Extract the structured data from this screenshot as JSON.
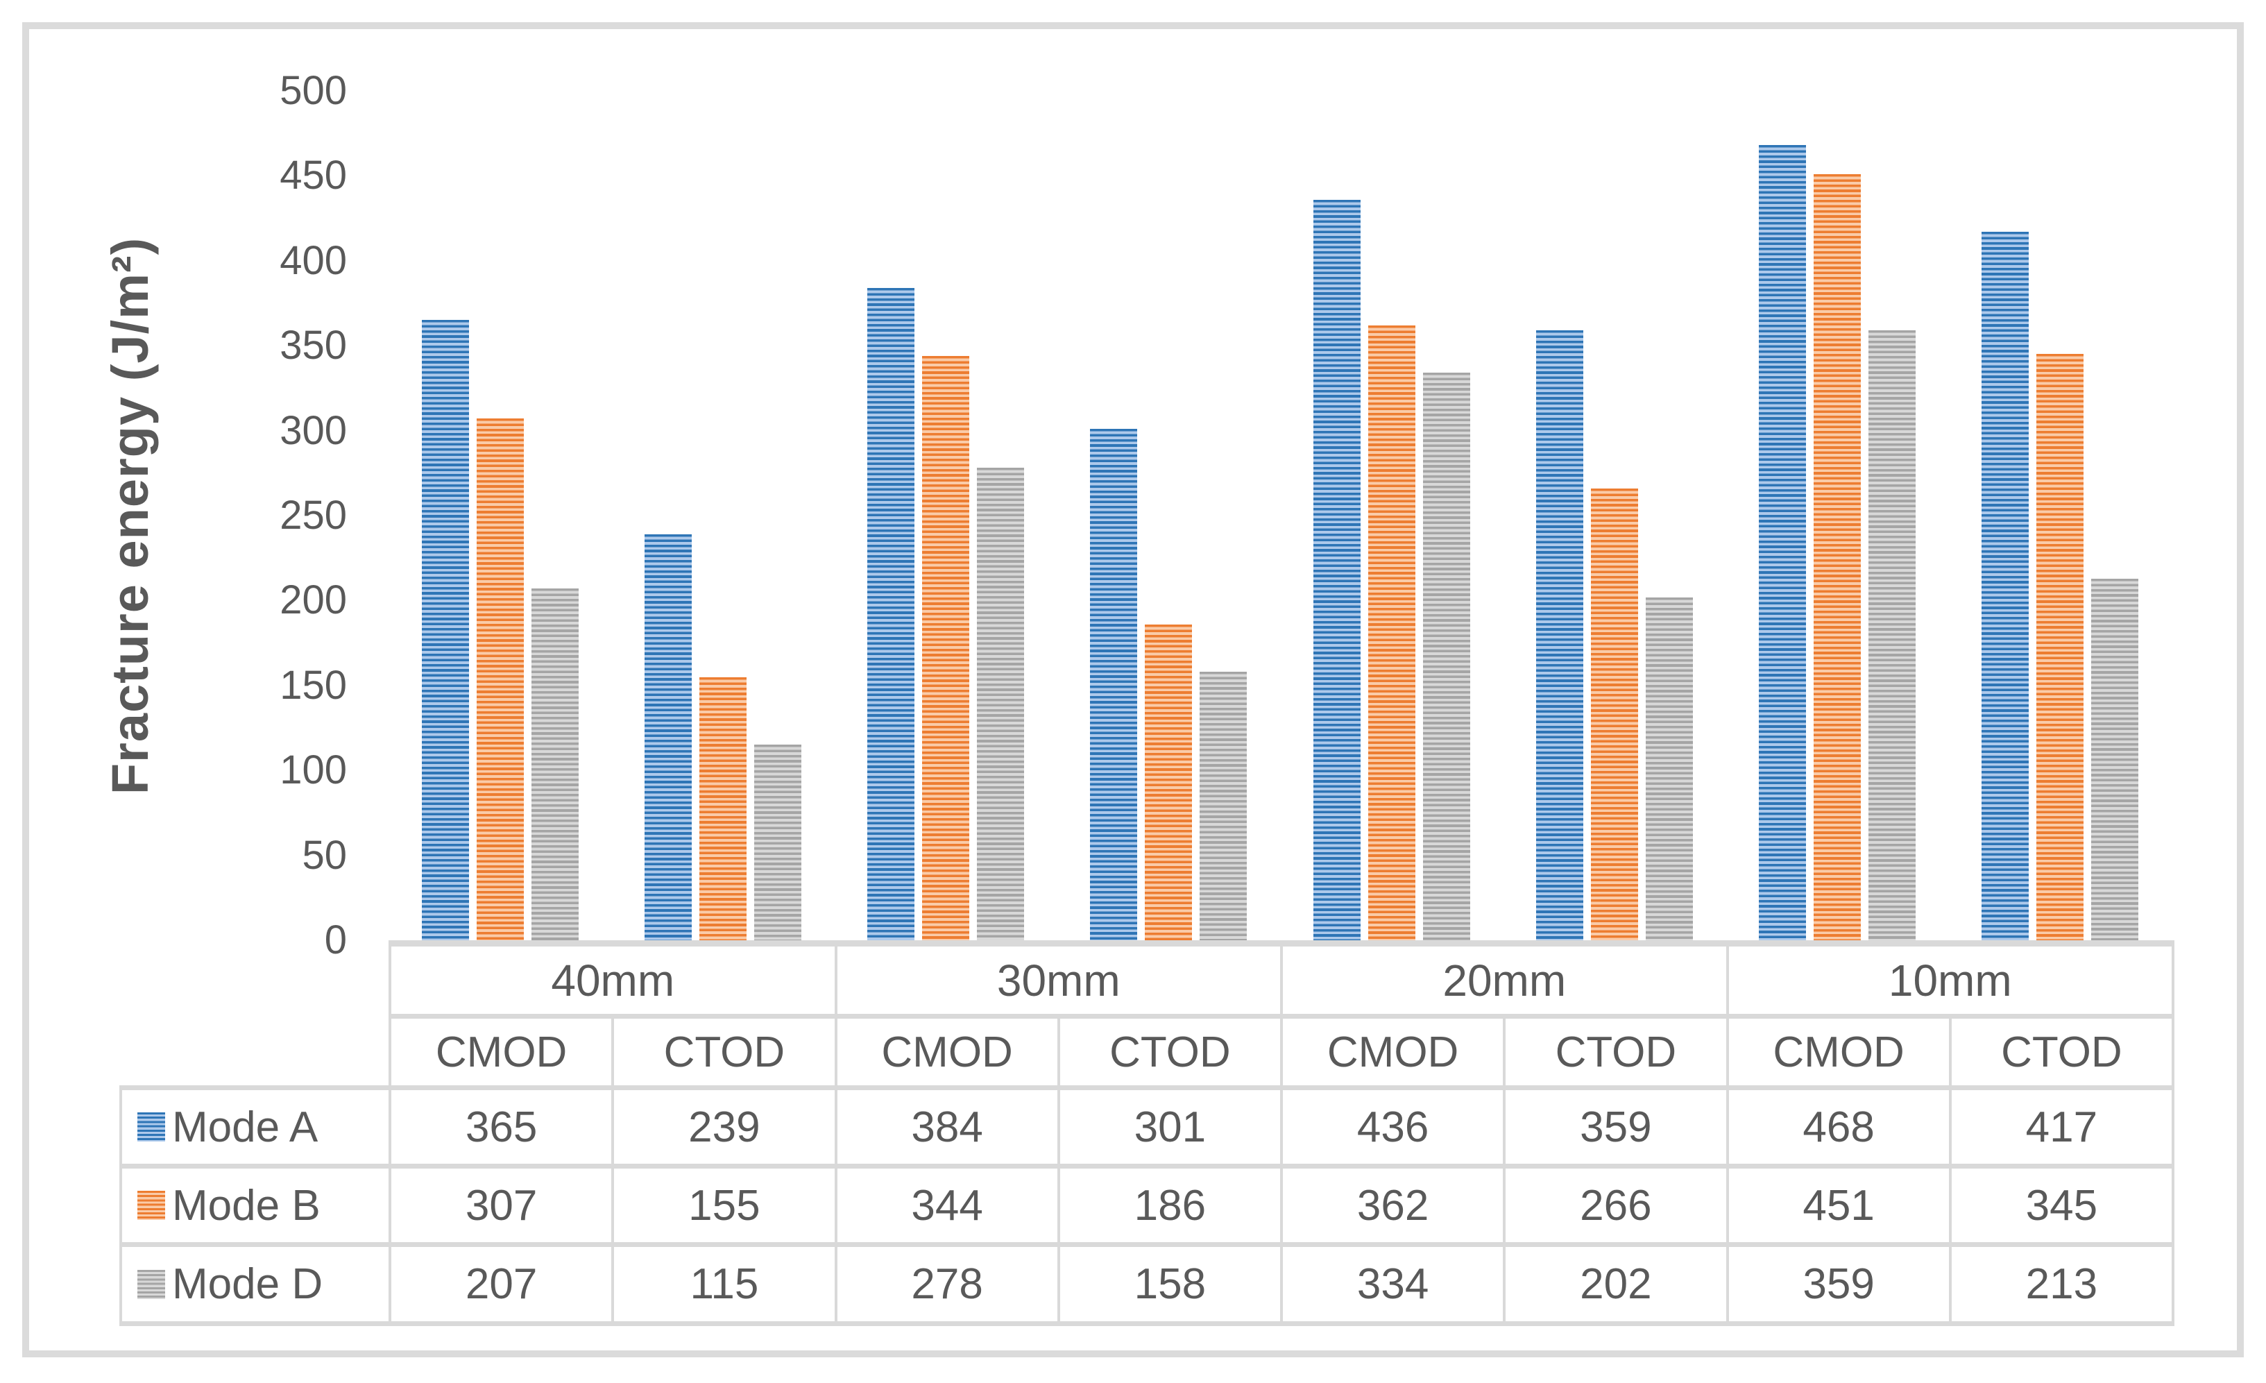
{
  "chart_data": {
    "type": "bar",
    "title": "",
    "ylabel": "Fracture energy (J/m²)",
    "xlabel": "",
    "ylim": [
      0,
      500
    ],
    "y_ticks": [
      0,
      50,
      100,
      150,
      200,
      250,
      300,
      350,
      400,
      450,
      500
    ],
    "grid": false,
    "plot_background": "#FFFFFF",
    "legend_position": "table-rows-left",
    "bar_pattern": "light-horizontal-stripes",
    "group_labels": [
      "40mm",
      "30mm",
      "20mm",
      "10mm"
    ],
    "sub_labels": [
      "CMOD",
      "CTOD"
    ],
    "categories": [
      "40mm CMOD",
      "40mm CTOD",
      "30mm CMOD",
      "30mm CTOD",
      "20mm CMOD",
      "20mm CTOD",
      "10mm CMOD",
      "10mm CTOD"
    ],
    "series": [
      {
        "name": "Mode A",
        "color": "#2E75B6",
        "color_light": "#ADC9EB",
        "values": [
          365,
          239,
          384,
          301,
          436,
          359,
          468,
          417
        ]
      },
      {
        "name": "Mode B",
        "color": "#ED7D31",
        "color_light": "#FACBA8",
        "values": [
          307,
          155,
          344,
          186,
          362,
          266,
          451,
          345
        ]
      },
      {
        "name": "Mode D",
        "color": "#A5A5A5",
        "color_light": "#D8D8D8",
        "values": [
          207,
          115,
          278,
          158,
          334,
          202,
          359,
          213
        ]
      }
    ]
  },
  "colors": {
    "text": "#595959",
    "table_border": "#D9D9D9",
    "frame_border": "#DBDBDB",
    "background": "#FFFFFF"
  }
}
